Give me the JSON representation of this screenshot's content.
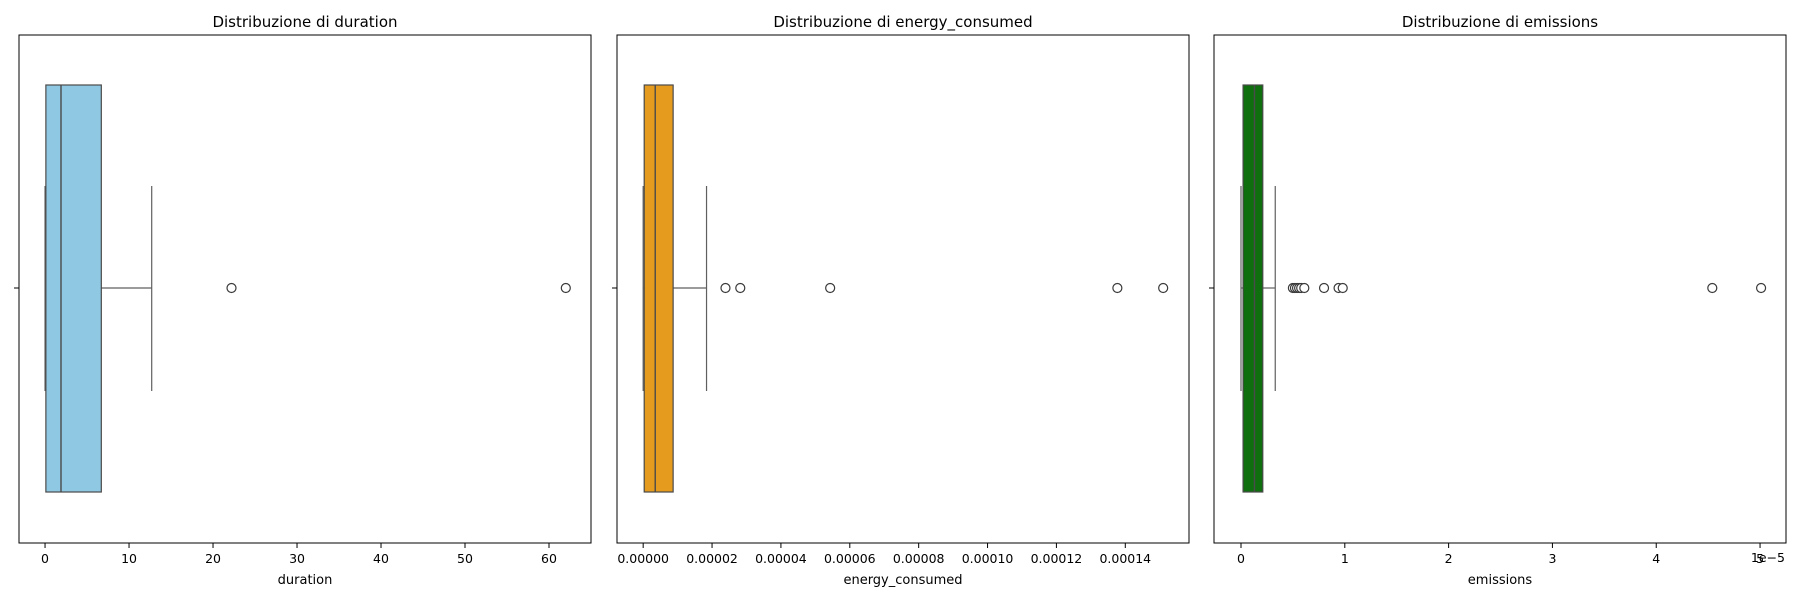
{
  "chart_data": [
    {
      "type": "box",
      "title": "Distribuzione di duration",
      "xlabel": "duration",
      "ylabel": "",
      "color": "#8fc8e3",
      "xlim": [
        -3.1,
        65.0
      ],
      "ticks": [
        0,
        10,
        20,
        30,
        40,
        50,
        60
      ],
      "tick_labels": [
        "0",
        "10",
        "20",
        "30",
        "40",
        "50",
        "60"
      ],
      "offset_label": "",
      "box": {
        "min": 0.0,
        "q1": 0.1,
        "median": 1.9,
        "q3": 6.7,
        "max": 12.7
      },
      "outliers": [
        22.2,
        62.0
      ]
    },
    {
      "type": "box",
      "title": "Distribuzione di energy_consumed",
      "xlabel": "energy_consumed",
      "ylabel": "",
      "color": "#e59b1d",
      "xlim": [
        -7.6e-06,
        0.0001585
      ],
      "ticks": [
        0,
        2e-05,
        4e-05,
        6e-05,
        8e-05,
        0.0001,
        0.00012,
        0.00014
      ],
      "tick_labels": [
        "0.00000",
        "0.00002",
        "0.00004",
        "0.00006",
        "0.00008",
        "0.00010",
        "0.00012",
        "0.00014"
      ],
      "offset_label": "",
      "box": {
        "min": 0.0,
        "q1": 3e-07,
        "median": 3.5e-06,
        "q3": 8.7e-06,
        "max": 1.84e-05
      },
      "outliers": [
        2.39e-05,
        2.82e-05,
        5.43e-05,
        0.0001377,
        0.000151
      ]
    },
    {
      "type": "box",
      "title": "Distribuzione di emissions",
      "xlabel": "emissions",
      "ylabel": "",
      "color": "#0f6f0f",
      "xlim": [
        -0.26,
        5.25
      ],
      "ticks": [
        0,
        1,
        2,
        3,
        4,
        5
      ],
      "tick_labels": [
        "0",
        "1",
        "2",
        "3",
        "4",
        "5"
      ],
      "offset_label": "1e−5",
      "box": {
        "min": 0.0,
        "q1": 0.02,
        "median": 0.13,
        "q3": 0.21,
        "max": 0.33
      },
      "outliers": [
        0.5,
        0.52,
        0.54,
        0.56,
        0.58,
        0.61,
        0.8,
        0.94,
        0.98,
        4.54,
        5.01
      ]
    }
  ]
}
